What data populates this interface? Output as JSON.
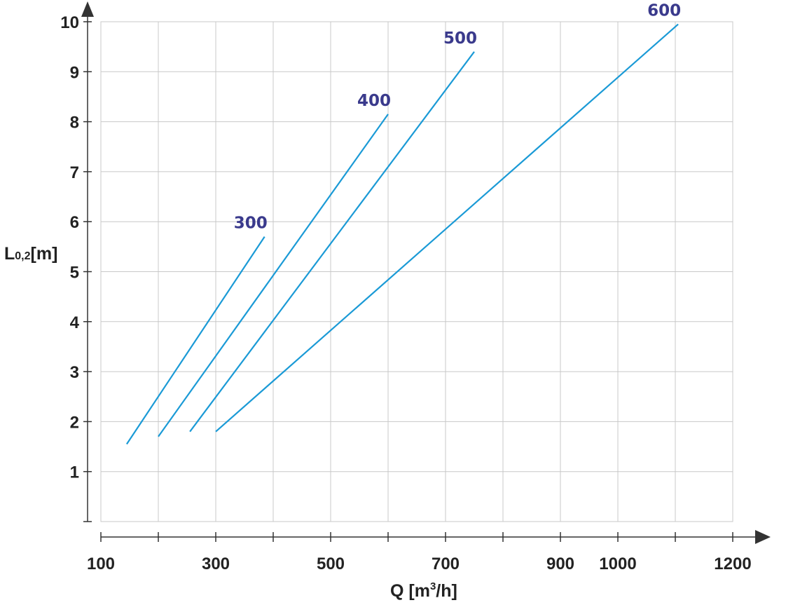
{
  "chart_data": {
    "type": "line",
    "xlabel": "Q [m³/h]",
    "ylabel": "L0,2[m]",
    "xlim": [
      100,
      1200
    ],
    "ylim": [
      0,
      10
    ],
    "x_tick_labels": [
      "100",
      "300",
      "500",
      "700",
      "900",
      "1000",
      "1200"
    ],
    "y_tick_labels": [
      "1",
      "2",
      "3",
      "4",
      "5",
      "6",
      "7",
      "8",
      "9",
      "10"
    ],
    "grid": true,
    "line_color": "#1a9ad6",
    "label_color": "#3a3a8c",
    "series": [
      {
        "name": "300",
        "x": [
          145,
          385
        ],
        "y": [
          1.55,
          5.7
        ]
      },
      {
        "name": "400",
        "x": [
          200,
          600
        ],
        "y": [
          1.7,
          8.15
        ]
      },
      {
        "name": "500",
        "x": [
          255,
          750
        ],
        "y": [
          1.8,
          9.4
        ]
      },
      {
        "name": "600",
        "x": [
          300,
          1105
        ],
        "y": [
          1.8,
          9.95
        ]
      }
    ]
  }
}
